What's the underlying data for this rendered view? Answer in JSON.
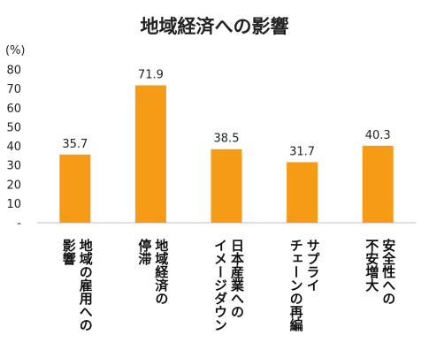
{
  "chart_data": {
    "type": "bar",
    "title": "地域経済への影響",
    "unit_label": "(%)",
    "categories": [
      "地域の雇用への\n影響",
      "地域経済の\n停滞",
      "日本産業への\nイメージダウン",
      "サプライ\nチェーンの再編",
      "安全性への\n不安増大"
    ],
    "values": [
      35.7,
      71.9,
      38.5,
      31.7,
      40.3
    ],
    "data_labels": [
      "35.7",
      "71.9",
      "38.5",
      "31.7",
      "40.3"
    ],
    "ylim": [
      0,
      80
    ],
    "y_ticks": [
      0,
      10,
      20,
      30,
      40,
      50,
      60,
      70,
      80
    ],
    "y_tick_labels": [
      "-",
      "10",
      "20",
      "30",
      "40",
      "50",
      "60",
      "70",
      "80"
    ],
    "bar_color": "#F59B16",
    "axis_color": "#BFBFBF",
    "grid": false,
    "legend": "none"
  }
}
